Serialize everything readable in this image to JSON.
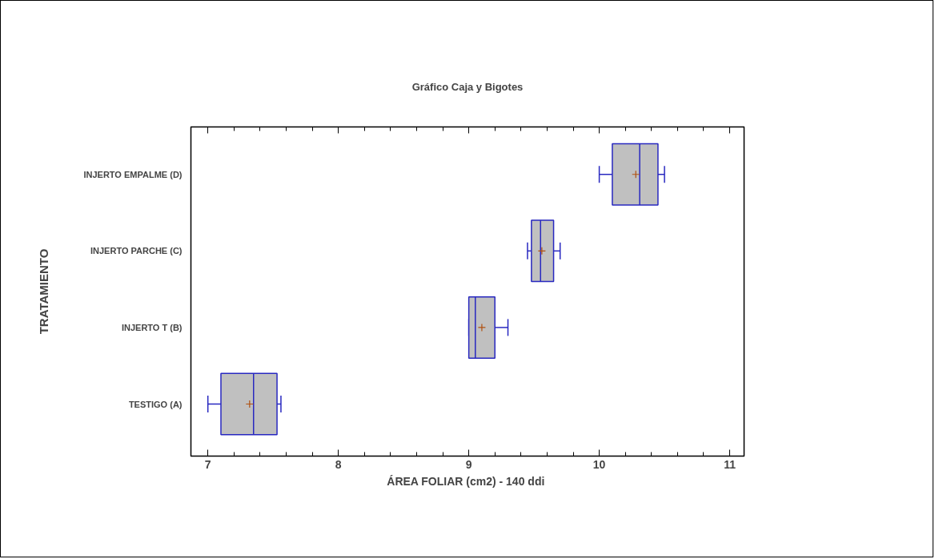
{
  "chart_data": {
    "type": "box",
    "orientation": "horizontal",
    "title": "Gráfico Caja y Bigotes",
    "xlabel": "ÁREA FOLIAR  (cm2) - 140 ddi",
    "ylabel": "TRATAMIENTO",
    "categories": [
      "INJERTO EMPALME (D)",
      "INJERTO PARCHE (C)",
      "INJERTO T (B)",
      "TESTIGO (A)"
    ],
    "boxes": [
      {
        "low": 10.0,
        "q1": 10.1,
        "median": 10.31,
        "q3": 10.45,
        "high": 10.5,
        "mean": 10.28
      },
      {
        "low": 9.45,
        "q1": 9.48,
        "median": 9.55,
        "q3": 9.65,
        "high": 9.7,
        "mean": 9.56
      },
      {
        "low": 9.0,
        "q1": 9.0,
        "median": 9.05,
        "q3": 9.2,
        "high": 9.3,
        "mean": 9.1
      },
      {
        "low": 7.0,
        "q1": 7.1,
        "median": 7.35,
        "q3": 7.53,
        "high": 7.56,
        "mean": 7.32
      }
    ],
    "color": "#c0c0c0",
    "xlim": [
      6.87,
      11.11
    ],
    "xticks": [
      7,
      8,
      9,
      10,
      11
    ],
    "grid": false
  }
}
